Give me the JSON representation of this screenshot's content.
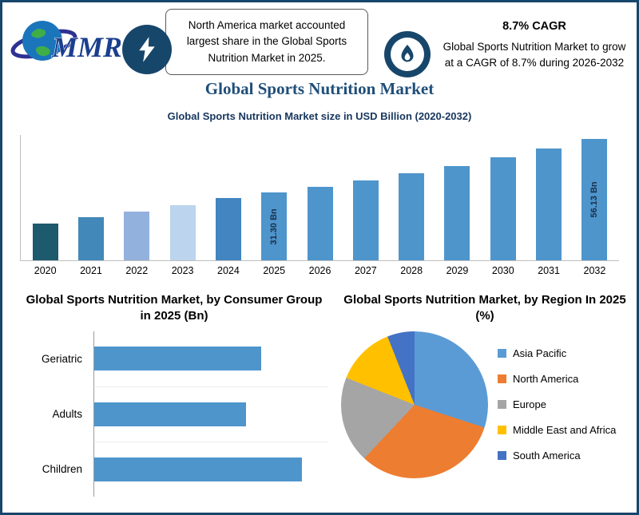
{
  "title": "Global Sports Nutrition Market",
  "header": {
    "logo_text": "MMR",
    "callout1": "North America market accounted largest share in the Global Sports Nutrition Market in 2025.",
    "cagr_title": "8.7% CAGR",
    "cagr_text": "Global Sports Nutrition Market to grow at a CAGR of 8.7% during 2026-2032"
  },
  "colors": {
    "border_navy": "#17466b",
    "title_navy": "#1f4e79",
    "bar_blue": "#4e95cc"
  },
  "chart_data": [
    {
      "type": "bar",
      "title": "Global Sports Nutrition Market size in USD Billion (2020-2032)",
      "categories": [
        "2020",
        "2021",
        "2022",
        "2023",
        "2024",
        "2025",
        "2026",
        "2027",
        "2028",
        "2029",
        "2030",
        "2031",
        "2032"
      ],
      "values": [
        17.0,
        20.0,
        22.5,
        25.5,
        28.8,
        31.3,
        34.0,
        37.0,
        40.2,
        43.7,
        47.5,
        51.6,
        56.13
      ],
      "value_labels": {
        "2025": "31.30 Bn",
        "2032": "56.13 Bn"
      },
      "ylim": [
        0,
        58
      ],
      "bar_colors": [
        "#1d5a6e",
        "#4288b8",
        "#93b1dd",
        "#bcd4ee",
        "#4285c0",
        "#4e95cc",
        "#4e95cc",
        "#4e95cc",
        "#4e95cc",
        "#4e95cc",
        "#4e95cc",
        "#4e95cc",
        "#4e95cc"
      ],
      "grid": false
    },
    {
      "type": "bar",
      "orientation": "horizontal",
      "title": "Global Sports Nutrition Market, by Consumer Group in 2025 (Bn)",
      "categories": [
        "Geriatric",
        "Adults",
        "Children"
      ],
      "values": [
        10.0,
        9.1,
        12.4
      ],
      "xlim": [
        0,
        14
      ],
      "color": "#4e95cc",
      "grid": false
    },
    {
      "type": "pie",
      "title": "Global Sports Nutrition Market, by Region In 2025 (%)",
      "labels": [
        "Asia Pacific",
        "North America",
        "Europe",
        "Middle East and Africa",
        "South America"
      ],
      "values": [
        30,
        32,
        19,
        13,
        6
      ],
      "colors": [
        "#5b9bd5",
        "#ed7d31",
        "#a5a5a5",
        "#ffc000",
        "#4472c4"
      ],
      "legend_position": "right",
      "start_angle_deg": 0,
      "direction": "clockwise"
    }
  ]
}
